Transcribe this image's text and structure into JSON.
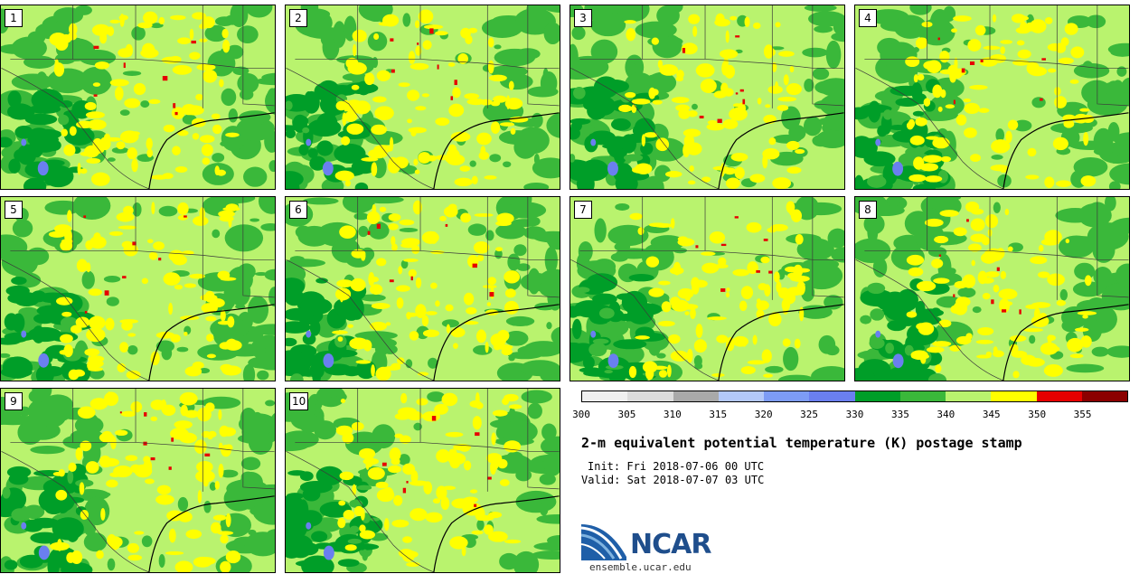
{
  "title": "2-m equivalent potential temperature (K) postage stamp",
  "init_line": "Init: Fri 2018-07-06 00 UTC",
  "valid_line": "Valid: Sat 2018-07-07 03 UTC",
  "logo_text": "NCAR",
  "website": "ensemble.ucar.edu",
  "colorbar": {
    "ticks": [
      "300",
      "305",
      "310",
      "315",
      "320",
      "325",
      "330",
      "335",
      "340",
      "345",
      "350",
      "355"
    ],
    "colors": [
      "#f0f0f0",
      "#dcdcdc",
      "#a9a9a9",
      "#b3c8f8",
      "#7d9cf5",
      "#6a7ff0",
      "#009e28",
      "#3ab83a",
      "#b9f36e",
      "#ffff00",
      "#e60000",
      "#8b0000"
    ]
  },
  "panels": [
    {
      "label": "1"
    },
    {
      "label": "2"
    },
    {
      "label": "3"
    },
    {
      "label": "4"
    },
    {
      "label": "5"
    },
    {
      "label": "6"
    },
    {
      "label": "7"
    },
    {
      "label": "8"
    },
    {
      "label": "9"
    },
    {
      "label": "10"
    }
  ]
}
